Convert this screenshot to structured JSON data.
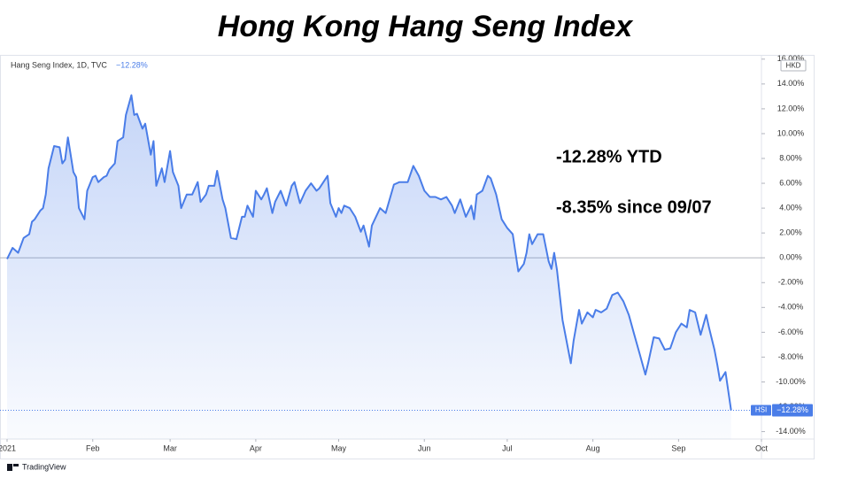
{
  "chart_data": {
    "type": "area",
    "title": "Hong Kong Hang Seng Index",
    "subtitle": "Hang Seng Index, 1D, TVC",
    "last_value_label": "−12.28%",
    "currency": "HKD",
    "annotations": [
      "-12.28% YTD",
      "-8.35% since 09/07"
    ],
    "source": "TradingView",
    "x": [
      0,
      2,
      4,
      6,
      8,
      9,
      10,
      12,
      13,
      14,
      15,
      17,
      19,
      20,
      21,
      22,
      24,
      25,
      26,
      28,
      29,
      31,
      32,
      33,
      35,
      36,
      37,
      39,
      40,
      42,
      43,
      45,
      46,
      47,
      49,
      50,
      52,
      53,
      54,
      56,
      57,
      59,
      60,
      62,
      63,
      65,
      67,
      69,
      70,
      72,
      73,
      75,
      76,
      78,
      79,
      81,
      83,
      85,
      86,
      87,
      89,
      90,
      92,
      93,
      94,
      96,
      97,
      99,
      101,
      103,
      104,
      106,
      108,
      110,
      112,
      113,
      116,
      117,
      119,
      120,
      121,
      122,
      124,
      126,
      128,
      129,
      131,
      132,
      135,
      137,
      140,
      142,
      145,
      147,
      149,
      151,
      153,
      155,
      157,
      159,
      161,
      162,
      164,
      166,
      168,
      169,
      170,
      172,
      174,
      175,
      177,
      179,
      181,
      183,
      185,
      187,
      188,
      189,
      190,
      192,
      194,
      196,
      197,
      198,
      199,
      201,
      204,
      205,
      207,
      208,
      210,
      212,
      213,
      215,
      217,
      219,
      221,
      223,
      225,
      227,
      229,
      231,
      232,
      234,
      236,
      238,
      240,
      242,
      244,
      246,
      247,
      249,
      251,
      253,
      254,
      256,
      257,
      258,
      260,
      262
    ],
    "series": [
      {
        "name": "HSI",
        "color": "#4a7de8",
        "values": [
          -0.1,
          0.8,
          0.4,
          1.6,
          1.9,
          2.9,
          3.1,
          3.8,
          4.0,
          5.1,
          7.2,
          9.0,
          8.9,
          7.6,
          7.9,
          9.7,
          6.9,
          6.5,
          4.0,
          3.1,
          5.4,
          6.5,
          6.6,
          6.1,
          6.5,
          6.6,
          7.1,
          7.6,
          9.4,
          9.7,
          11.5,
          13.1,
          11.5,
          11.6,
          10.4,
          10.8,
          8.3,
          9.4,
          5.8,
          7.2,
          6.1,
          8.6,
          6.9,
          5.8,
          4.0,
          5.1,
          5.1,
          6.1,
          4.5,
          5.1,
          5.8,
          5.8,
          7.0,
          4.7,
          4.0,
          1.6,
          1.5,
          3.3,
          3.3,
          4.2,
          3.3,
          5.4,
          4.7,
          5.1,
          5.6,
          3.6,
          4.5,
          5.4,
          4.2,
          5.8,
          6.1,
          4.4,
          5.4,
          6.0,
          5.4,
          5.6,
          6.6,
          4.4,
          3.3,
          4.0,
          3.6,
          4.2,
          4.0,
          3.3,
          2.1,
          2.6,
          0.9,
          2.6,
          4.0,
          3.6,
          5.9,
          6.1,
          6.1,
          7.4,
          6.6,
          5.4,
          4.9,
          4.9,
          4.7,
          4.9,
          4.2,
          3.6,
          4.7,
          3.3,
          4.2,
          3.1,
          5.1,
          5.4,
          6.6,
          6.4,
          5.1,
          3.1,
          2.4,
          1.9,
          -1.1,
          -0.5,
          0.4,
          1.9,
          1.1,
          1.9,
          1.9,
          -0.3,
          -0.9,
          0.4,
          -1.0,
          -5.0,
          -8.5,
          -6.7,
          -4.2,
          -5.3,
          -4.4,
          -4.8,
          -4.2,
          -4.4,
          -4.1,
          -3.0,
          -2.8,
          -3.5,
          -4.6,
          -6.2,
          -7.8,
          -9.4,
          -8.5,
          -6.4,
          -6.5,
          -7.4,
          -7.3,
          -6.0,
          -5.3,
          -5.6,
          -4.2,
          -4.4,
          -6.2,
          -4.6,
          -5.6,
          -7.4,
          -8.6,
          -9.9,
          -9.2,
          -12.28
        ]
      }
    ],
    "xlim": [
      0,
      273
    ],
    "xticks": [
      {
        "value": 0,
        "label": "2021"
      },
      {
        "value": 31,
        "label": "Feb"
      },
      {
        "value": 59,
        "label": "Mar"
      },
      {
        "value": 90,
        "label": "Apr"
      },
      {
        "value": 120,
        "label": "May"
      },
      {
        "value": 151,
        "label": "Jun"
      },
      {
        "value": 181,
        "label": "Jul"
      },
      {
        "value": 212,
        "label": "Aug"
      },
      {
        "value": 243,
        "label": "Sep"
      },
      {
        "value": 273,
        "label": "Oct"
      }
    ],
    "ylim": [
      -14.6,
      16.2
    ],
    "yticks": [
      {
        "value": -14,
        "label": "-14.00%"
      },
      {
        "value": -12,
        "label": "-12.00%"
      },
      {
        "value": -10,
        "label": "-10.00%"
      },
      {
        "value": -8,
        "label": "-8.00%"
      },
      {
        "value": -6,
        "label": "-6.00%"
      },
      {
        "value": -4,
        "label": "-4.00%"
      },
      {
        "value": -2,
        "label": "-2.00%"
      },
      {
        "value": 0,
        "label": "0.00%"
      },
      {
        "value": 2,
        "label": "2.00%"
      },
      {
        "value": 4,
        "label": "4.00%"
      },
      {
        "value": 6,
        "label": "6.00%"
      },
      {
        "value": 8,
        "label": "8.00%"
      },
      {
        "value": 10,
        "label": "10.00%"
      },
      {
        "value": 12,
        "label": "12.00%"
      },
      {
        "value": 14,
        "label": "14.00%"
      },
      {
        "value": 16,
        "label": "16.00%"
      }
    ],
    "zero_line": true
  }
}
